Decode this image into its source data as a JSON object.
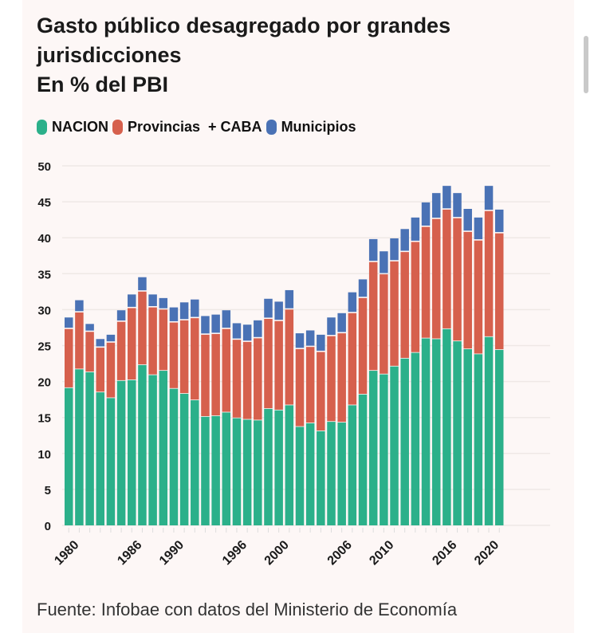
{
  "title_lines": [
    "Gasto público desagregado por grandes",
    "jurisdicciones",
    "En % del PBI"
  ],
  "source": "Fuente: Infobae con datos del Ministerio de Economía",
  "chart_data": {
    "type": "bar",
    "stacked": true,
    "title": "Gasto público desagregado por grandes jurisdicciones En % del PBI",
    "xlabel": "",
    "ylabel": "",
    "ylim": [
      0,
      50
    ],
    "yticks": [
      0,
      5,
      10,
      15,
      20,
      25,
      30,
      35,
      40,
      45,
      50
    ],
    "grid": true,
    "legend_position": "top-left",
    "xtick_labels": [
      "1980",
      "1986",
      "1990",
      "1996",
      "2000",
      "2006",
      "2010",
      "2016",
      "2020"
    ],
    "categories": [
      1980,
      1981,
      1982,
      1983,
      1984,
      1985,
      1986,
      1987,
      1988,
      1989,
      1990,
      1991,
      1992,
      1993,
      1994,
      1995,
      1996,
      1997,
      1998,
      1999,
      2000,
      2001,
      2002,
      2003,
      2004,
      2005,
      2006,
      2007,
      2008,
      2009,
      2010,
      2011,
      2012,
      2013,
      2014,
      2015,
      2016,
      2017,
      2018,
      2019,
      2020,
      2021
    ],
    "series": [
      {
        "name": "NACION",
        "color": "#2bb08a",
        "values": [
          19.1,
          21.7,
          21.3,
          18.5,
          17.7,
          20.1,
          20.2,
          22.3,
          20.9,
          21.5,
          19.0,
          18.3,
          17.4,
          15.1,
          15.2,
          15.7,
          14.9,
          14.7,
          14.6,
          16.2,
          16.0,
          16.7,
          13.7,
          14.2,
          13.1,
          14.4,
          14.3,
          16.7,
          18.2,
          21.5,
          21.0,
          22.1,
          23.2,
          24.0,
          26.0,
          25.9,
          27.3,
          25.6,
          24.5,
          23.8,
          26.2,
          24.4
        ]
      },
      {
        "name": "Provincias  + CABA",
        "color": "#d6604d",
        "values": [
          8.3,
          8.0,
          5.7,
          6.3,
          7.8,
          8.3,
          10.1,
          10.3,
          9.5,
          8.6,
          9.3,
          10.3,
          11.5,
          11.5,
          11.5,
          11.7,
          11.0,
          10.9,
          11.5,
          12.6,
          12.5,
          13.4,
          10.9,
          10.7,
          11.1,
          12.0,
          12.5,
          12.9,
          13.5,
          15.2,
          14.0,
          14.7,
          14.9,
          15.5,
          15.6,
          16.8,
          16.7,
          17.2,
          16.4,
          15.9,
          17.6,
          16.3
        ]
      },
      {
        "name": "Municipios",
        "color": "#4a72b5",
        "values": [
          1.6,
          1.7,
          1.1,
          1.2,
          1.1,
          1.6,
          1.9,
          2.0,
          1.8,
          1.6,
          2.1,
          2.5,
          2.6,
          2.6,
          2.7,
          2.6,
          2.3,
          2.4,
          2.5,
          2.8,
          2.7,
          2.7,
          2.2,
          2.3,
          2.4,
          2.6,
          2.8,
          2.9,
          2.6,
          3.2,
          3.2,
          3.2,
          3.2,
          3.4,
          3.4,
          3.6,
          3.3,
          3.5,
          3.2,
          3.2,
          3.5,
          3.3
        ]
      }
    ]
  }
}
